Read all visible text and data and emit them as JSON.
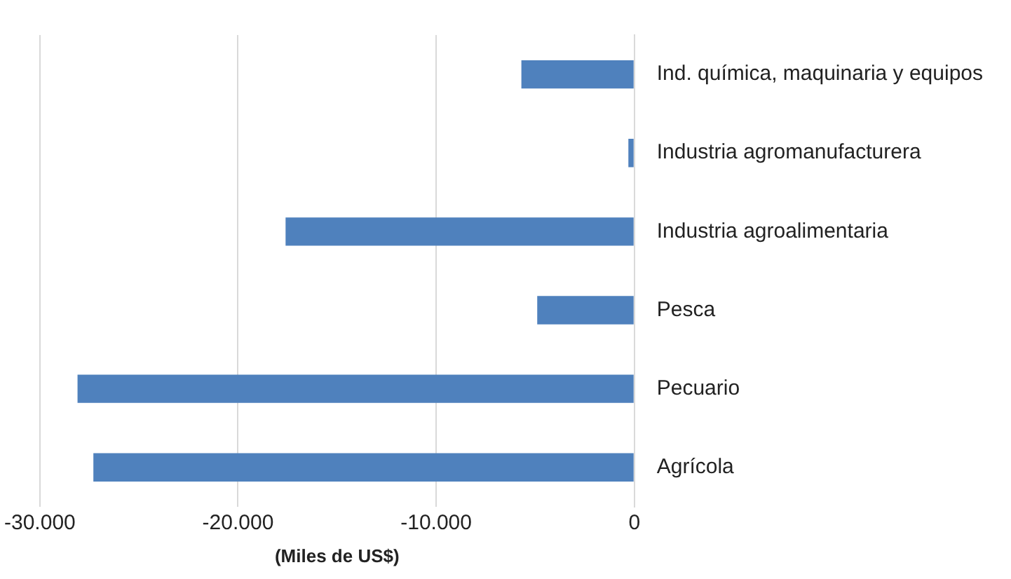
{
  "chart_data": {
    "type": "bar",
    "orientation": "horizontal",
    "xlabel": "(Miles de US$)",
    "categories": [
      "Ind. química, maquinaria y equipos",
      "Industria agromanufacturera",
      "Industria agroalimentaria",
      "Pesca",
      "Pecuario",
      "Agrícola"
    ],
    "values": [
      -5700,
      -300,
      -17600,
      -4900,
      -28100,
      -27300
    ],
    "color": "#4f81bd",
    "xlim": [
      -30000,
      0
    ],
    "xticks": [
      {
        "value": -30000,
        "label": "-30.000"
      },
      {
        "value": -20000,
        "label": "-20.000"
      },
      {
        "value": -10000,
        "label": "-10.000"
      },
      0
    ],
    "grid": "x"
  }
}
